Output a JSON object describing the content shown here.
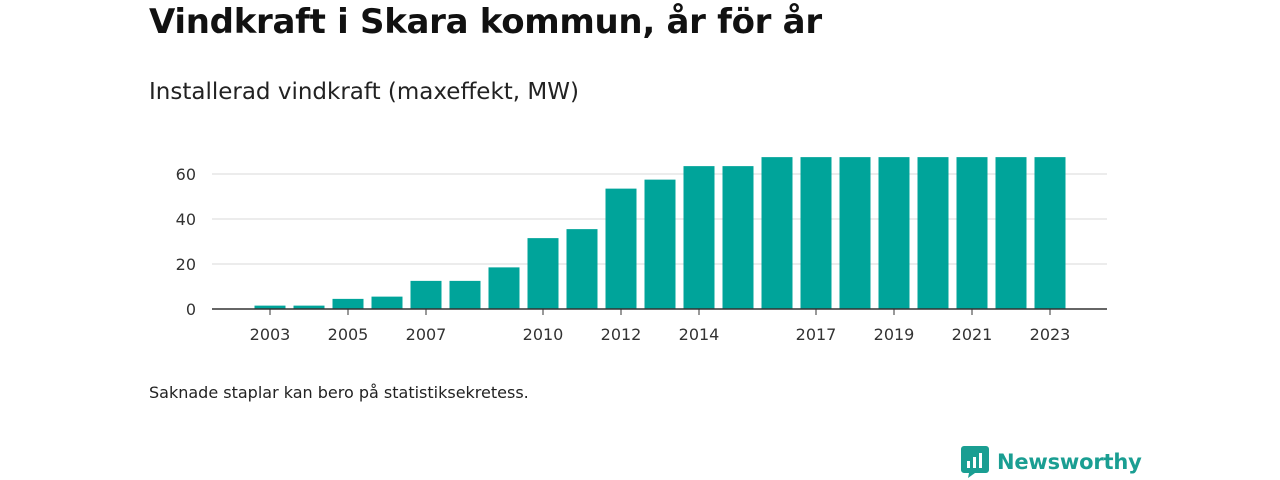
{
  "chart_data": {
    "type": "bar",
    "title": "Vindkraft i Skara kommun, år för år",
    "subtitle": "Installerad vindkraft (maxeffekt, MW)",
    "categories": [
      "2003",
      "2004",
      "2005",
      "2006",
      "2007",
      "2008",
      "2009",
      "2010",
      "2011",
      "2012",
      "2013",
      "2014",
      "2015",
      "2016",
      "2017",
      "2018",
      "2019",
      "2020",
      "2021",
      "2022",
      "2023"
    ],
    "x_tick_labels": [
      "2003",
      "2005",
      "2007",
      "2010",
      "2012",
      "2014",
      "2017",
      "2019",
      "2021",
      "2023"
    ],
    "values": [
      1.5,
      1.5,
      4.5,
      5.5,
      12.5,
      12.5,
      18.5,
      31.5,
      35.5,
      53.5,
      57.5,
      63.5,
      63.5,
      67.5,
      67.5,
      67.5,
      67.5,
      67.5,
      67.5,
      67.5,
      67.5
    ],
    "y_ticks": [
      "0",
      "20",
      "40",
      "60"
    ],
    "ylim": [
      0,
      70
    ],
    "xlabel": "",
    "ylabel": "",
    "grid": true,
    "bar_color": "#00a49a"
  },
  "footnote": "Saknade staplar kan bero på statistiksekretess.",
  "brand": {
    "name": "Newsworthy",
    "icon": "newsworthy-logo-icon",
    "color": "#1a9e92"
  }
}
